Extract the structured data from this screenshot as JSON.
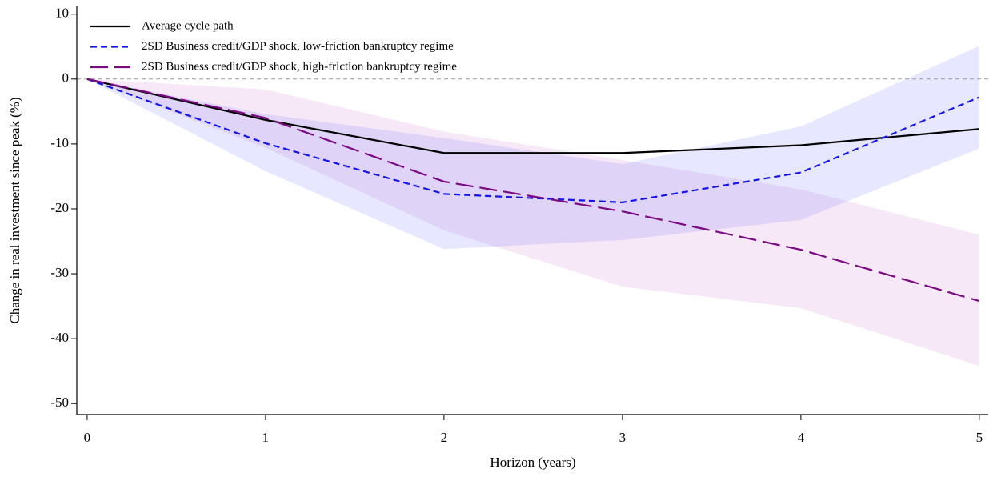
{
  "chart_data": {
    "type": "line",
    "x_label": "Horizon (years)",
    "y_label": "Change in real investment since peak (%)",
    "x": [
      0,
      1,
      2,
      3,
      4,
      5
    ],
    "xlim": [
      -0.058,
      5.05
    ],
    "xticks": [
      0,
      1,
      2,
      3,
      4,
      5
    ],
    "ylim": [
      -51.7,
      11.2
    ],
    "yticks": [
      10,
      0,
      -10,
      -20,
      -30,
      -40,
      -50
    ],
    "reference_line": 0,
    "legend": "top-left",
    "series": [
      {
        "name": "Average cycle path",
        "color": "#000000",
        "dash": "none",
        "values": [
          0,
          -6.3,
          -11.4,
          -11.4,
          -10.2,
          -7.7
        ]
      },
      {
        "name": "2SD Business credit/GDP shock, low-friction bankruptcy regime",
        "color": "#1414e6",
        "dash": "8,5",
        "band_color": "rgba(110,110,255,0.17)",
        "values": [
          0,
          -9.9,
          -17.7,
          -19.0,
          -14.4,
          -2.8
        ],
        "band": {
          "lower": [
            0,
            -14.2,
            -26.2,
            -24.8,
            -21.7,
            -10.7
          ],
          "upper": [
            0,
            -5.4,
            -9.1,
            -13.1,
            -7.3,
            5.1
          ]
        }
      },
      {
        "name": "2SD Business credit/GDP shock, high-friction bankruptcy regime",
        "color": "#7a0a82",
        "dash": "22,8",
        "band_color": "rgba(210,140,210,0.2)",
        "values": [
          0,
          -6.0,
          -15.8,
          -20.4,
          -26.3,
          -34.2
        ],
        "band": {
          "lower": [
            0,
            -10.6,
            -23.3,
            -32.0,
            -35.3,
            -44.2
          ],
          "upper": [
            0,
            -1.6,
            -8.1,
            -12.5,
            -17.0,
            -24.0
          ]
        }
      }
    ]
  }
}
